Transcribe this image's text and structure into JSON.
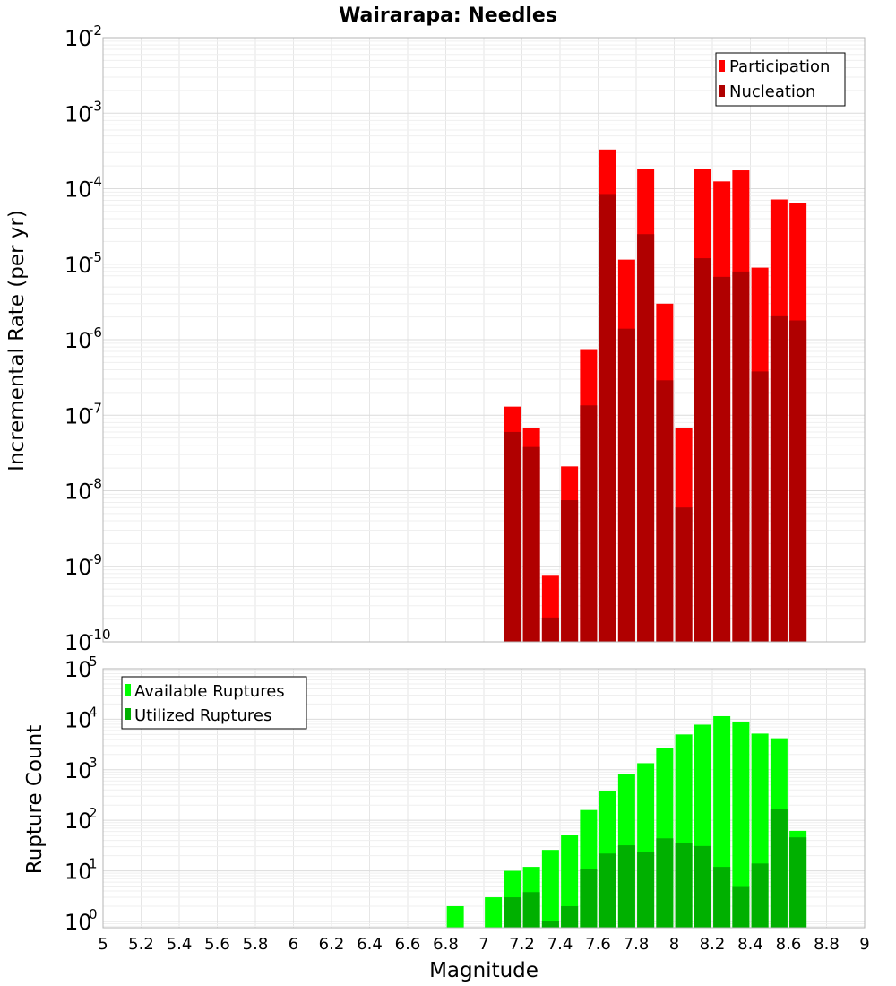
{
  "colors": {
    "participation": "#ff0000",
    "nucleation": "#b00000",
    "available": "#00ff00",
    "utilized": "#00b000",
    "grid": "#e6e6e6",
    "frame": "#b4b4b4"
  },
  "chart_data": [
    {
      "type": "bar",
      "title": "Wairarapa: Needles",
      "xlabel": "",
      "ylabel": "Incremental Rate (per yr)",
      "y_scale": "log",
      "ylim": [
        1e-10,
        0.01
      ],
      "xlim": [
        5,
        9
      ],
      "grid": true,
      "legend_position": "top-right",
      "legend": [
        "Participation",
        "Nucleation"
      ],
      "y_ticks": [
        {
          "base": "10",
          "exp": "-2"
        },
        {
          "base": "10",
          "exp": "-3"
        },
        {
          "base": "10",
          "exp": "-4"
        },
        {
          "base": "10",
          "exp": "-5"
        },
        {
          "base": "10",
          "exp": "-6"
        },
        {
          "base": "10",
          "exp": "-7"
        },
        {
          "base": "10",
          "exp": "-8"
        },
        {
          "base": "10",
          "exp": "-9"
        },
        {
          "base": "10",
          "exp": "-10"
        }
      ],
      "x": [
        7.15,
        7.25,
        7.35,
        7.45,
        7.55,
        7.65,
        7.75,
        7.85,
        7.95,
        8.05,
        8.15,
        8.25,
        8.35,
        8.45,
        8.55,
        8.65
      ],
      "series": [
        {
          "name": "Participation",
          "values": [
            1.3e-07,
            6.7e-08,
            7.5e-10,
            2.1e-08,
            7.5e-07,
            0.00033,
            1.15e-05,
            0.00018,
            3e-06,
            6.7e-08,
            0.00018,
            0.000125,
            0.000175,
            9e-06,
            7.2e-05,
            6.5e-05
          ]
        },
        {
          "name": "Nucleation",
          "values": [
            6e-08,
            3.8e-08,
            2.1e-10,
            7.5e-09,
            1.35e-07,
            8.5e-05,
            1.4e-06,
            2.5e-05,
            2.9e-07,
            6e-09,
            1.2e-05,
            6.8e-06,
            8e-06,
            3.8e-07,
            2.1e-06,
            1.8e-06
          ]
        }
      ]
    },
    {
      "type": "bar",
      "title": "",
      "xlabel": "Magnitude",
      "ylabel": "Rupture Count",
      "y_scale": "log",
      "ylim": [
        0.75,
        100000.0
      ],
      "xlim": [
        5,
        9
      ],
      "grid": true,
      "legend_position": "top-left",
      "legend": [
        "Available Ruptures",
        "Utilized Ruptures"
      ],
      "y_ticks": [
        {
          "base": "10",
          "exp": "5"
        },
        {
          "base": "10",
          "exp": "4"
        },
        {
          "base": "10",
          "exp": "3"
        },
        {
          "base": "10",
          "exp": "2"
        },
        {
          "base": "10",
          "exp": "1"
        },
        {
          "base": "10",
          "exp": "0"
        }
      ],
      "x_ticks": [
        "5",
        "5.2",
        "5.4",
        "5.6",
        "5.8",
        "6",
        "6.2",
        "6.4",
        "6.6",
        "6.8",
        "7",
        "7.2",
        "7.4",
        "7.6",
        "7.8",
        "8",
        "8.2",
        "8.4",
        "8.6",
        "8.8",
        "9"
      ],
      "x": [
        6.85,
        7.05,
        7.15,
        7.25,
        7.35,
        7.45,
        7.55,
        7.65,
        7.75,
        7.85,
        7.95,
        8.05,
        8.15,
        8.25,
        8.35,
        8.45,
        8.55,
        8.65
      ],
      "series": [
        {
          "name": "Available Ruptures",
          "values": [
            2,
            3,
            10,
            12,
            26,
            52,
            160,
            380,
            820,
            1350,
            2700,
            5000,
            7800,
            11500,
            9000,
            5200,
            4200,
            62
          ]
        },
        {
          "name": "Utilized Ruptures",
          "values": [
            0,
            0,
            3,
            3.8,
            1,
            2,
            11,
            22,
            32,
            24,
            44,
            36,
            31,
            12,
            5,
            14,
            170,
            46
          ]
        }
      ]
    }
  ]
}
